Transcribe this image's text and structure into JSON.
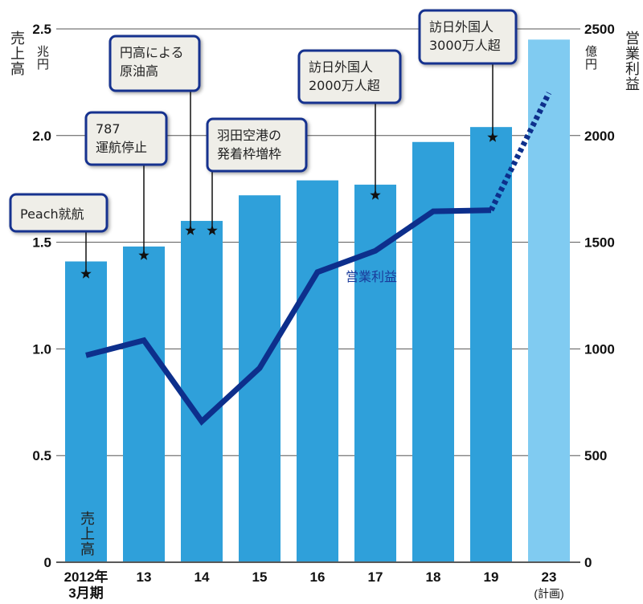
{
  "chart_data": {
    "type": "bar+line",
    "categories": [
      "2012年\n3月期",
      "13",
      "14",
      "15",
      "16",
      "17",
      "18",
      "19",
      "23\n(計画)"
    ],
    "left_axis": {
      "label": "売上高",
      "unit": "兆円",
      "ylim": [
        0,
        2.5
      ],
      "ticks": [
        "0",
        "0.5",
        "1.0",
        "1.5",
        "2.0",
        "2.5"
      ]
    },
    "right_axis": {
      "label": "営業利益",
      "unit": "億円",
      "ylim": [
        0,
        2500
      ],
      "ticks": [
        "0",
        "500",
        "1000",
        "1500",
        "2000",
        "2500"
      ]
    },
    "grid": true,
    "series": [
      {
        "name": "売上高",
        "type": "bar",
        "axis": "left",
        "values": [
          1.41,
          1.48,
          1.6,
          1.72,
          1.79,
          1.77,
          1.97,
          2.04,
          2.45
        ],
        "color": "#2fa0da",
        "plan_color": "#80cbf1"
      },
      {
        "name": "営業利益",
        "type": "line",
        "axis": "right",
        "values": [
          970,
          1040,
          660,
          910,
          1360,
          1460,
          1645,
          1650,
          2200
        ],
        "color": "#0d2f8c",
        "dashed_last_segment": true
      }
    ],
    "annotations": [
      {
        "lines": [
          "Peach就航"
        ],
        "category_index": 0
      },
      {
        "lines": [
          "787",
          "運航停止"
        ],
        "category_index": 1
      },
      {
        "lines": [
          "円高による",
          "原油高"
        ],
        "category_index": 2
      },
      {
        "lines": [
          "羽田空港の",
          "発着枠増枠"
        ],
        "category_index": 2
      },
      {
        "lines": [
          "訪日外国人",
          "2000万人超"
        ],
        "category_index": 5
      },
      {
        "lines": [
          "訪日外国人",
          "3000万人超"
        ],
        "category_index": 7
      }
    ]
  }
}
